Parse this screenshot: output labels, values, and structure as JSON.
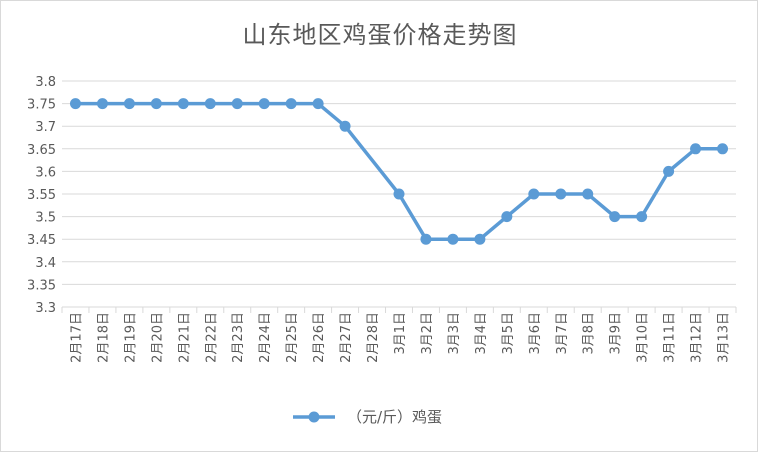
{
  "chart_data": {
    "type": "line",
    "title": "山东地区鸡蛋价格走势图",
    "xlabel": "",
    "ylabel": "",
    "ylim": [
      3.3,
      3.8
    ],
    "yticks": [
      "3.3",
      "3.35",
      "3.4",
      "3.45",
      "3.5",
      "3.55",
      "3.6",
      "3.65",
      "3.7",
      "3.75",
      "3.8"
    ],
    "ytick_values": [
      3.3,
      3.35,
      3.4,
      3.45,
      3.5,
      3.55,
      3.6,
      3.65,
      3.7,
      3.75,
      3.8
    ],
    "categories": [
      "2月17日",
      "2月18日",
      "2月19日",
      "2月20日",
      "2月21日",
      "2月22日",
      "2月23日",
      "2月24日",
      "2月25日",
      "2月26日",
      "2月27日",
      "2月28日",
      "3月1日",
      "3月2日",
      "3月3日",
      "3月4日",
      "3月5日",
      "3月6日",
      "3月7日",
      "3月8日",
      "3月9日",
      "3月10日",
      "3月11日",
      "3月12日",
      "3月13日"
    ],
    "grid": true,
    "legend_position": "bottom",
    "series": [
      {
        "name": "（元/斤）鸡蛋",
        "color": "#5b9bd5",
        "values": [
          3.75,
          3.75,
          3.75,
          3.75,
          3.75,
          3.75,
          3.75,
          3.75,
          3.75,
          3.75,
          3.7,
          null,
          3.55,
          3.45,
          3.45,
          3.45,
          3.5,
          3.55,
          3.55,
          3.55,
          3.5,
          3.5,
          3.6,
          3.65,
          3.65
        ]
      }
    ]
  }
}
